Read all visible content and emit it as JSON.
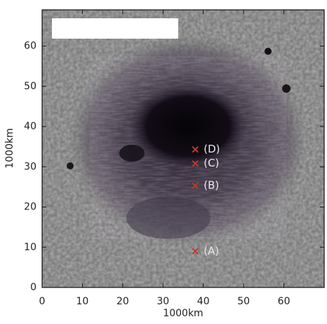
{
  "chart_data": {
    "type": "scatter",
    "x_label": "1000km",
    "y_label": "1000km",
    "x": [
      38,
      38,
      38,
      38
    ],
    "values": [
      9,
      25.3,
      30.8,
      34.3
    ],
    "labels": [
      "(A)",
      "(B)",
      "(C)",
      "(D)"
    ],
    "color": "#c0392b",
    "xlim": [
      0,
      70
    ],
    "ylim": [
      0,
      69
    ],
    "xticks": [
      0,
      10,
      20,
      30,
      40,
      50,
      60
    ],
    "yticks": [
      0,
      10,
      20,
      30,
      40,
      50,
      60
    ]
  }
}
